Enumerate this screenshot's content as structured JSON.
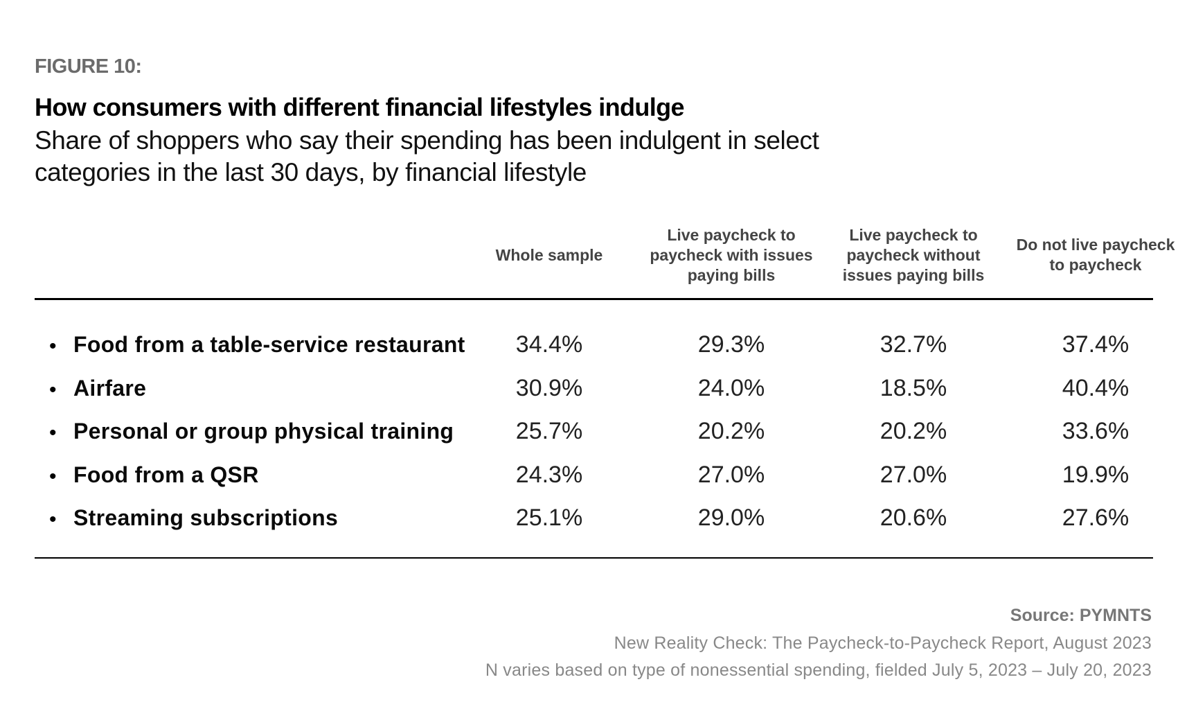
{
  "figure_label": "FIGURE 10:",
  "chart_data": {
    "type": "table",
    "title": "How consumers with different financial lifestyles indulge",
    "subtitle": "Share of shoppers who say their spending has been indulgent in select categories in the last 30 days, by financial lifestyle",
    "columns": [
      "Whole sample",
      "Live paycheck to paycheck with issues paying bills",
      "Live paycheck to paycheck without issues paying bills",
      "Do not live paycheck to paycheck"
    ],
    "rows": [
      {
        "label": "Food from a table-service restaurant",
        "values": [
          "34.4%",
          "29.3%",
          "32.7%",
          "37.4%"
        ]
      },
      {
        "label": "Airfare",
        "values": [
          "30.9%",
          "24.0%",
          "18.5%",
          "40.4%"
        ]
      },
      {
        "label": "Personal or group physical training",
        "values": [
          "25.7%",
          "20.2%",
          "20.2%",
          "33.6%"
        ]
      },
      {
        "label": "Food from a QSR",
        "values": [
          "24.3%",
          "27.0%",
          "27.0%",
          "19.9%"
        ]
      },
      {
        "label": "Streaming subscriptions",
        "values": [
          "25.1%",
          "29.0%",
          "20.6%",
          "27.6%"
        ]
      }
    ]
  },
  "source": "Source: PYMNTS",
  "notes": [
    "New Reality Check: The Paycheck-to-Paycheck Report, August 2023",
    "N varies based on type of nonessential spending, fielded July 5, 2023 – July 20, 2023"
  ]
}
